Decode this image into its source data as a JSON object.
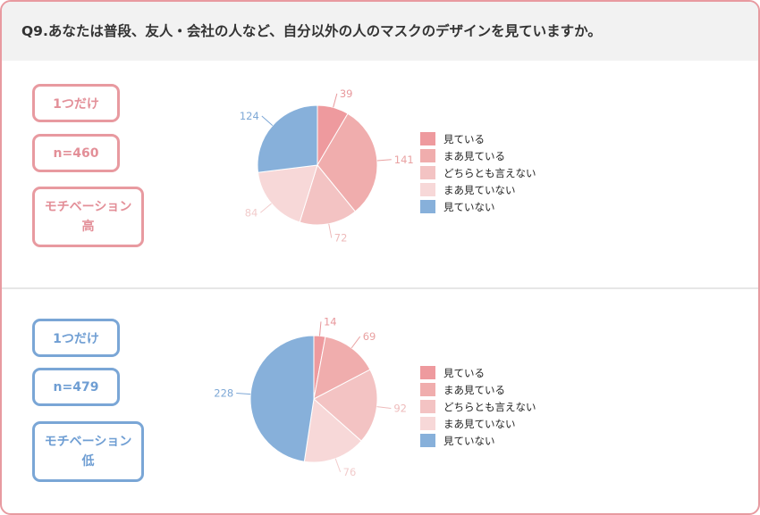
{
  "question": "Q9.あなたは普段、友人・会社の人など、自分以外の人のマスクのデザインを見ていますか。",
  "groups": [
    {
      "badge_answer": "1つだけ",
      "badge_n": "n=460",
      "badge_motivation_line1": "モチベーション",
      "badge_motivation_line2": "高"
    },
    {
      "badge_answer": "1つだけ",
      "badge_n": "n=479",
      "badge_motivation_line1": "モチベーション",
      "badge_motivation_line2": "低"
    }
  ],
  "colors": {
    "border": "#e89aa0",
    "pink_text": "#e38f98",
    "blue_text": "#6f9ed3",
    "slices": [
      "#ee9a9e",
      "#f0adad",
      "#f3c3c3",
      "#f7d8d8",
      "#87b0da"
    ]
  },
  "chart_data": [
    {
      "type": "pie",
      "categories": [
        "見ている",
        "まあ見ている",
        "どちらとも言えない",
        "まあ見ていない",
        "見ていない"
      ],
      "values": [
        39,
        141,
        72,
        84,
        124
      ],
      "legend": "right"
    },
    {
      "type": "pie",
      "categories": [
        "見ている",
        "まあ見ている",
        "どちらとも言えない",
        "まあ見ていない",
        "見ていない"
      ],
      "values": [
        14,
        69,
        92,
        76,
        228
      ],
      "legend": "right"
    }
  ]
}
